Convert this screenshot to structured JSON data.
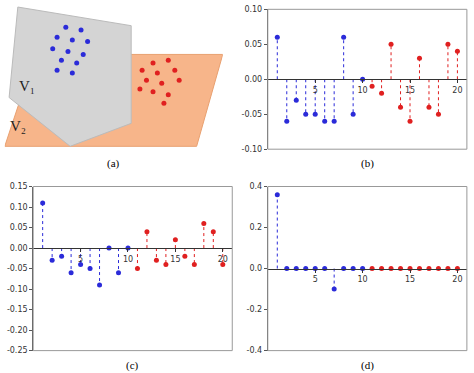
{
  "chart_data": [
    {
      "type": "scatter",
      "title": "(a)",
      "tick_labels": false,
      "xlim": [
        0,
        100
      ],
      "ylim": [
        0,
        100
      ],
      "xticks": [],
      "yticks": [],
      "annotations": [
        "V₁",
        "V₂"
      ],
      "marker": "circle",
      "series": [
        {
          "color": "#2b2bd9",
          "x": [
            28,
            35,
            24,
            31,
            38,
            22,
            29,
            36,
            26,
            33,
            24,
            31
          ],
          "values": [
            85,
            83,
            78,
            76,
            75,
            70,
            68,
            66,
            62,
            60,
            55,
            53
          ]
        },
        {
          "color": "#e02020",
          "x": [
            68,
            75,
            63,
            70,
            78,
            65,
            72,
            80,
            68,
            75,
            62,
            73
          ],
          "values": [
            60,
            62,
            55,
            53,
            55,
            48,
            46,
            48,
            40,
            38,
            42,
            32
          ]
        }
      ]
    },
    {
      "type": "stem",
      "title": "(b)",
      "grid": false,
      "marker": "circle",
      "line_style": "dotted",
      "xlim": [
        0,
        21
      ],
      "xticks": [
        5,
        10,
        15,
        20
      ],
      "ylim": [
        -0.1,
        0.1
      ],
      "yticks": [
        {
          "value": -0.1,
          "label": "-0.10"
        },
        {
          "value": -0.05,
          "label": "-0.05"
        },
        {
          "value": 0,
          "label": "0.00"
        },
        {
          "value": 0.05,
          "label": "0.05"
        },
        {
          "value": 0.1,
          "label": "0.10"
        }
      ],
      "series": [
        {
          "color": "#2b2bd9",
          "x": [
            1,
            2,
            3,
            4,
            5,
            6,
            7,
            8,
            9,
            10
          ],
          "values": [
            0.06,
            -0.06,
            -0.03,
            -0.05,
            -0.05,
            -0.06,
            -0.06,
            0.06,
            -0.05,
            0.0
          ]
        },
        {
          "color": "#e02020",
          "x": [
            11,
            12,
            13,
            14,
            15,
            16,
            17,
            18,
            19,
            20
          ],
          "values": [
            -0.01,
            -0.02,
            0.05,
            -0.04,
            -0.06,
            0.03,
            -0.04,
            -0.05,
            0.05,
            0.04
          ]
        }
      ]
    },
    {
      "type": "stem",
      "title": "(c)",
      "grid": false,
      "marker": "circle",
      "line_style": "dotted",
      "xlim": [
        0,
        21
      ],
      "xticks": [
        5,
        10,
        15,
        20
      ],
      "ylim": [
        -0.25,
        0.15
      ],
      "yticks": [
        {
          "value": -0.25,
          "label": "-0.25"
        },
        {
          "value": -0.2,
          "label": "-0.20"
        },
        {
          "value": -0.15,
          "label": "-0.15"
        },
        {
          "value": -0.1,
          "label": "-0.10"
        },
        {
          "value": -0.05,
          "label": "-0.05"
        },
        {
          "value": 0,
          "label": "0.00"
        },
        {
          "value": 0.05,
          "label": "0.05"
        },
        {
          "value": 0.1,
          "label": "0.10"
        },
        {
          "value": 0.15,
          "label": "0.15"
        }
      ],
      "series": [
        {
          "color": "#2b2bd9",
          "x": [
            1,
            2,
            3,
            4,
            5,
            6,
            7,
            8,
            9,
            10
          ],
          "values": [
            0.11,
            -0.03,
            -0.02,
            -0.06,
            -0.04,
            -0.05,
            -0.09,
            0.0,
            -0.06,
            0.0
          ]
        },
        {
          "color": "#e02020",
          "x": [
            11,
            12,
            13,
            14,
            15,
            16,
            17,
            18,
            19,
            20
          ],
          "values": [
            -0.05,
            0.04,
            -0.03,
            -0.04,
            0.02,
            -0.02,
            -0.04,
            0.06,
            0.04,
            -0.04
          ]
        }
      ]
    },
    {
      "type": "stem",
      "title": "(d)",
      "grid": false,
      "marker": "circle",
      "line_style": "dotted",
      "xlim": [
        0,
        21
      ],
      "xticks": [
        5,
        10,
        15,
        20
      ],
      "ylim": [
        -0.4,
        0.4
      ],
      "yticks": [
        {
          "value": -0.4,
          "label": "-0.4"
        },
        {
          "value": -0.2,
          "label": "-0.2"
        },
        {
          "value": 0,
          "label": "0.0"
        },
        {
          "value": 0.2,
          "label": "0.2"
        },
        {
          "value": 0.4,
          "label": "0.4"
        }
      ],
      "series": [
        {
          "color": "#2b2bd9",
          "x": [
            1,
            2,
            3,
            4,
            5,
            6,
            7,
            8,
            9,
            10
          ],
          "values": [
            0.36,
            0.0,
            0.0,
            0.0,
            0.0,
            0.0,
            -0.1,
            0.0,
            0.0,
            0.0
          ]
        },
        {
          "color": "#e02020",
          "x": [
            11,
            12,
            13,
            14,
            15,
            16,
            17,
            18,
            19,
            20
          ],
          "values": [
            0.0,
            0.0,
            0.0,
            0.0,
            0.0,
            0.0,
            0.0,
            0.0,
            0.0,
            0.0
          ]
        }
      ]
    }
  ]
}
